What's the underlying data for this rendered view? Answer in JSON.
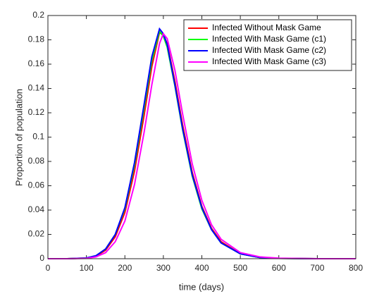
{
  "chart_data": {
    "type": "line",
    "xlabel": "time (days)",
    "ylabel": "Proportion of population",
    "x": [
      0,
      50,
      100,
      125,
      150,
      175,
      200,
      225,
      250,
      270,
      290,
      300,
      310,
      330,
      350,
      375,
      400,
      425,
      450,
      500,
      550,
      600,
      700,
      800
    ],
    "series": [
      {
        "name": "Infected Without Mask Game",
        "color": "#ff0000",
        "values": [
          0,
          0,
          0.0005,
          0.002,
          0.007,
          0.018,
          0.038,
          0.072,
          0.118,
          0.158,
          0.186,
          0.184,
          0.177,
          0.146,
          0.11,
          0.071,
          0.043,
          0.025,
          0.014,
          0.004,
          0.001,
          0.0003,
          0,
          0
        ]
      },
      {
        "name": "Infected With Mask Game (c1)",
        "color": "#00ff00",
        "values": [
          0,
          0,
          0.0006,
          0.0025,
          0.008,
          0.02,
          0.041,
          0.077,
          0.124,
          0.163,
          0.187,
          0.183,
          0.174,
          0.142,
          0.106,
          0.068,
          0.041,
          0.024,
          0.013,
          0.004,
          0.001,
          0.0003,
          0,
          0
        ]
      },
      {
        "name": "Infected With Mask Game (c2)",
        "color": "#0000ff",
        "values": [
          0,
          0,
          0.0006,
          0.0025,
          0.008,
          0.02,
          0.042,
          0.079,
          0.127,
          0.166,
          0.189,
          0.185,
          0.176,
          0.143,
          0.107,
          0.069,
          0.042,
          0.024,
          0.013,
          0.004,
          0.001,
          0.0003,
          0,
          0
        ]
      },
      {
        "name": "Infected With Mask Game (c3)",
        "color": "#ff00ff",
        "values": [
          0,
          0,
          0.0003,
          0.0015,
          0.005,
          0.014,
          0.031,
          0.061,
          0.104,
          0.143,
          0.177,
          0.185,
          0.181,
          0.155,
          0.119,
          0.078,
          0.048,
          0.028,
          0.016,
          0.005,
          0.0015,
          0.0004,
          0,
          0
        ]
      }
    ],
    "xlim": [
      0,
      800
    ],
    "xticks": [
      0,
      100,
      200,
      300,
      400,
      500,
      600,
      700,
      800
    ],
    "ylim": [
      0,
      0.2
    ],
    "yticks": [
      0,
      0.02,
      0.04,
      0.06,
      0.08,
      0.1,
      0.12,
      0.14,
      0.16,
      0.18,
      0.2
    ],
    "legend": "top-right"
  }
}
